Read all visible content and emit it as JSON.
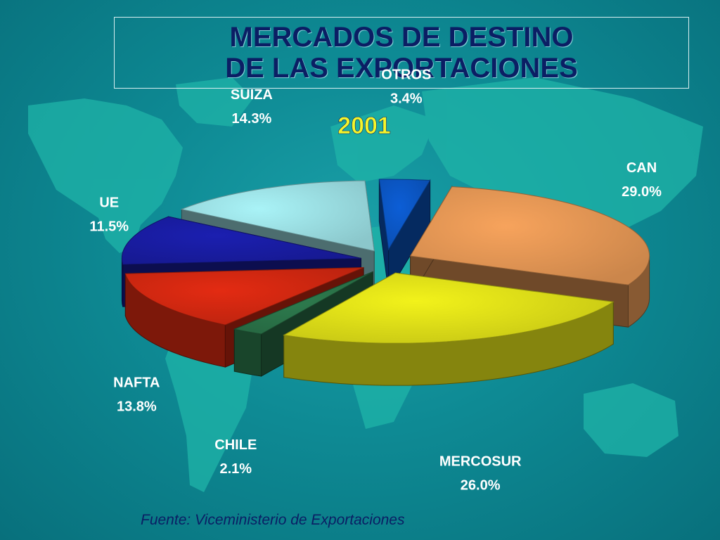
{
  "slide": {
    "title_line1": "MERCADOS DE DESTINO",
    "title_line2": "DE LAS EXPORTACIONES",
    "source": "Fuente: Viceministerio de Exportaciones"
  },
  "chart_data": {
    "type": "pie",
    "title": "2001",
    "unit": "%",
    "categories": [
      "CAN",
      "MERCOSUR",
      "CHILE",
      "NAFTA",
      "UE",
      "SUIZA",
      "OTROS"
    ],
    "values": [
      29.0,
      26.0,
      2.1,
      13.8,
      11.5,
      14.3,
      3.4
    ],
    "value_labels": [
      "29.0%",
      "26.0%",
      "2.1%",
      "13.8%",
      "11.5%",
      "14.3%",
      "3.4%"
    ],
    "colors": [
      "#f7a35c",
      "#f2f21a",
      "#2e7d4f",
      "#e32b12",
      "#1b1fb0",
      "#a9f3f7",
      "#0c5ed6"
    ],
    "exploded": true,
    "three_d": true,
    "legend": "none"
  }
}
